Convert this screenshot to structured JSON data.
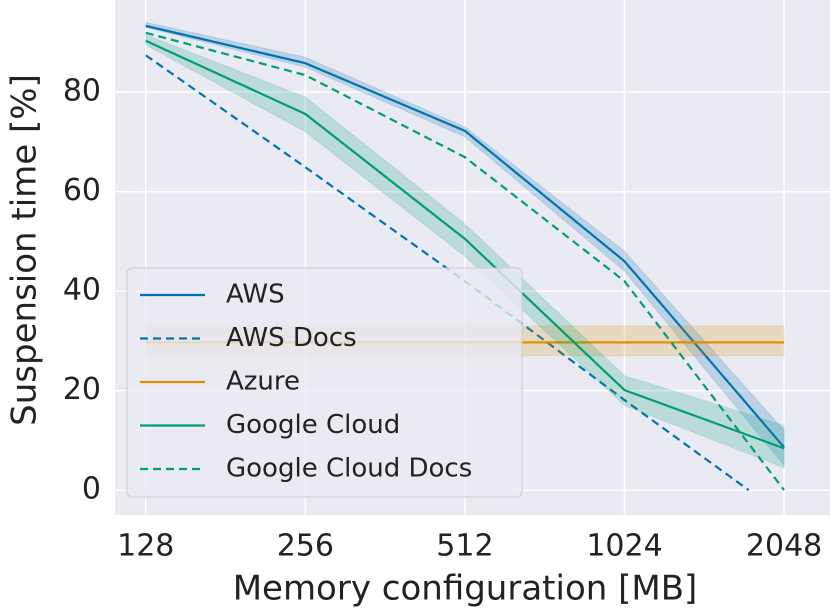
{
  "chart_data": {
    "type": "line",
    "xlabel": "Memory configuration [MB]",
    "ylabel": "Suspension time [%]",
    "xscale": "log2",
    "xlim": [
      112,
      2500
    ],
    "xticks": [
      128,
      256,
      512,
      1024,
      2048
    ],
    "ylim": [
      -5,
      98.5
    ],
    "yticks": [
      0,
      20,
      40,
      60,
      80
    ],
    "grid": true,
    "legend": "lower left",
    "series": [
      {
        "name": "AWS",
        "color": "#0173b2",
        "dash": false,
        "x": [
          128,
          256,
          512,
          1024,
          2048
        ],
        "values": [
          93.3,
          85.8,
          72.2,
          46,
          8.6
        ],
        "lower": [
          93,
          85,
          71,
          44,
          5
        ],
        "upper": [
          94,
          87,
          73,
          48,
          12
        ]
      },
      {
        "name": "AWS Docs",
        "color": "#0173b2",
        "dash": true,
        "x": [
          128,
          256,
          512,
          1024,
          1756
        ],
        "values": [
          87.4,
          64.9,
          42,
          18.1,
          0
        ]
      },
      {
        "name": "Azure",
        "color": "#de8f05",
        "dash": false,
        "x": [
          128,
          256,
          512,
          1024,
          2048
        ],
        "values": [
          29.7,
          29.7,
          29.7,
          29.7,
          29.7
        ],
        "lower": [
          27,
          27,
          27,
          27,
          27
        ],
        "upper": [
          33,
          33,
          33,
          33,
          33
        ]
      },
      {
        "name": "Google Cloud",
        "color": "#029e73",
        "dash": false,
        "x": [
          128,
          256,
          512,
          1024,
          2048
        ],
        "values": [
          90.3,
          75.6,
          50.5,
          20.1,
          8.4
        ],
        "lower": [
          89.5,
          72,
          47,
          17,
          4.5
        ],
        "upper": [
          91.5,
          79,
          53.5,
          23,
          13
        ]
      },
      {
        "name": "Google Cloud Docs",
        "color": "#029e73",
        "dash": true,
        "x": [
          128,
          256,
          512,
          1024,
          2048
        ],
        "values": [
          91.9,
          83.4,
          66.9,
          42,
          0
        ]
      }
    ]
  }
}
